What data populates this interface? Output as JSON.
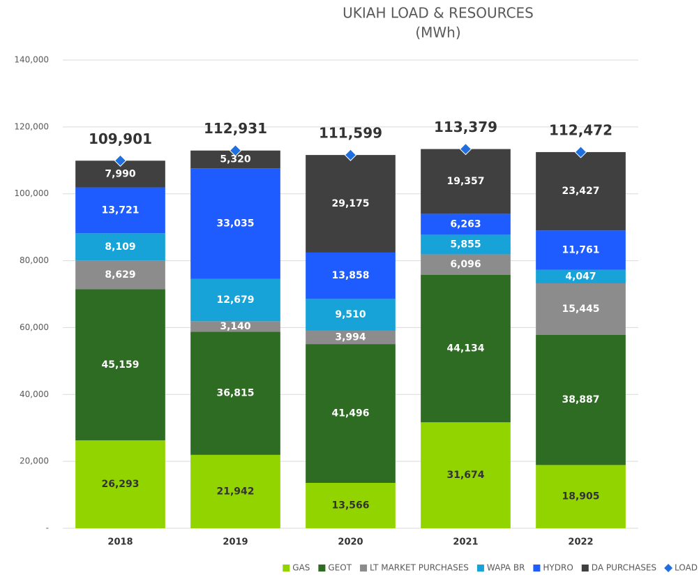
{
  "chart_data": {
    "type": "bar",
    "stacked": true,
    "title": "UKIAH LOAD & RESOURCES",
    "subtitle": "(MWh)",
    "categories": [
      "2018",
      "2019",
      "2020",
      "2021",
      "2022"
    ],
    "ylim": [
      0,
      140000
    ],
    "yticks": [
      {
        "value": 0,
        "label": "-"
      },
      {
        "value": 20000,
        "label": "20,000"
      },
      {
        "value": 40000,
        "label": "40,000"
      },
      {
        "value": 60000,
        "label": "60,000"
      },
      {
        "value": 80000,
        "label": "80,000"
      },
      {
        "value": 100000,
        "label": "100,000"
      },
      {
        "value": 120000,
        "label": "120,000"
      },
      {
        "value": 140000,
        "label": "140,000"
      }
    ],
    "grid": true,
    "legend": "bottom",
    "series": [
      {
        "name": "GAS",
        "color": "#92d400",
        "values": [
          26293,
          21942,
          13566,
          31674,
          18905
        ],
        "value_labels": [
          "26,293",
          "21,942",
          "13,566",
          "31,674",
          "18,905"
        ]
      },
      {
        "name": "GEOT",
        "color": "#2e6b23",
        "values": [
          45159,
          36815,
          41496,
          44134,
          38887
        ],
        "value_labels": [
          "45,159",
          "36,815",
          "41,496",
          "44,134",
          "38,887"
        ]
      },
      {
        "name": "LT MARKET PURCHASES",
        "color": "#8c8c8c",
        "values": [
          8629,
          3140,
          3994,
          6096,
          15445
        ],
        "value_labels": [
          "8,629",
          "3,140",
          "3,994",
          "6,096",
          "15,445"
        ]
      },
      {
        "name": "WAPA BR",
        "color": "#17a3d8",
        "values": [
          8109,
          12679,
          9510,
          5855,
          4047
        ],
        "value_labels": [
          "8,109",
          "12,679",
          "9,510",
          "5,855",
          "4,047"
        ]
      },
      {
        "name": "HYDRO",
        "color": "#1f5cff",
        "values": [
          13721,
          33035,
          13858,
          6263,
          11761
        ],
        "value_labels": [
          "13,721",
          "33,035",
          "13,858",
          "6,263",
          "11,761"
        ]
      },
      {
        "name": "DA PURCHASES",
        "color": "#404040",
        "values": [
          7990,
          5320,
          29175,
          19357,
          23427
        ],
        "value_labels": [
          "7,990",
          "5,320",
          "29,175",
          "19,357",
          "23,427"
        ]
      },
      {
        "name": "LOAD",
        "type": "scatter",
        "color": "#1f6fe0",
        "values": [
          109901,
          112931,
          111599,
          113379,
          112472
        ],
        "value_labels": [
          "109,901",
          "112,931",
          "111,599",
          "113,379",
          "112,472"
        ]
      }
    ]
  }
}
